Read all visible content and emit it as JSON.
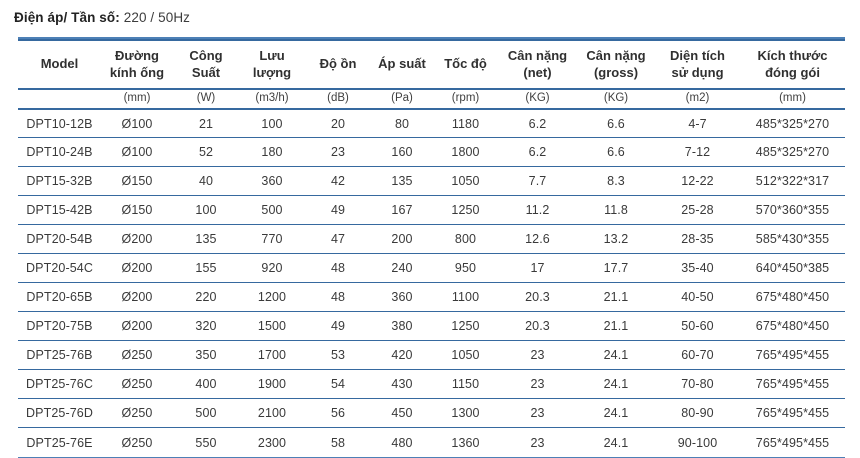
{
  "header": {
    "title_label": "Điện áp/ Tần số:",
    "title_value": "220 / 50Hz"
  },
  "colors": {
    "rule_dark": "#36699f",
    "rule_light": "#4d80b6",
    "text": "#3a3a3a"
  },
  "table": {
    "columns": [
      {
        "label": "Model",
        "unit": ""
      },
      {
        "label": "Đường\nkính ống",
        "unit": "(mm)"
      },
      {
        "label": "Công\nSuất",
        "unit": "(W)"
      },
      {
        "label": "Lưu\nlượng",
        "unit": "(m3/h)"
      },
      {
        "label": "Độ ồn",
        "unit": "(dB)"
      },
      {
        "label": "Áp suất",
        "unit": "(Pa)"
      },
      {
        "label": "Tốc độ",
        "unit": "(rpm)"
      },
      {
        "label": "Cân nặng\n(net)",
        "unit": "(KG)"
      },
      {
        "label": "Cân nặng\n(gross)",
        "unit": "(KG)"
      },
      {
        "label": "Diện tích\nsử dụng",
        "unit": "(m2)"
      },
      {
        "label": "Kích thước\nđóng gói",
        "unit": "(mm)"
      }
    ],
    "rows": [
      [
        "DPT10-12B",
        "Ø100",
        "21",
        "100",
        "20",
        "80",
        "1180",
        "6.2",
        "6.6",
        "4-7",
        "485*325*270"
      ],
      [
        "DPT10-24B",
        "Ø100",
        "52",
        "180",
        "23",
        "160",
        "1800",
        "6.2",
        "6.6",
        "7-12",
        "485*325*270"
      ],
      [
        "DPT15-32B",
        "Ø150",
        "40",
        "360",
        "42",
        "135",
        "1050",
        "7.7",
        "8.3",
        "12-22",
        "512*322*317"
      ],
      [
        "DPT15-42B",
        "Ø150",
        "100",
        "500",
        "49",
        "167",
        "1250",
        "11.2",
        "11.8",
        "25-28",
        "570*360*355"
      ],
      [
        "DPT20-54B",
        "Ø200",
        "135",
        "770",
        "47",
        "200",
        "800",
        "12.6",
        "13.2",
        "28-35",
        "585*430*355"
      ],
      [
        "DPT20-54C",
        "Ø200",
        "155",
        "920",
        "48",
        "240",
        "950",
        "17",
        "17.7",
        "35-40",
        "640*450*385"
      ],
      [
        "DPT20-65B",
        "Ø200",
        "220",
        "1200",
        "48",
        "360",
        "1100",
        "20.3",
        "21.1",
        "40-50",
        "675*480*450"
      ],
      [
        "DPT20-75B",
        "Ø200",
        "320",
        "1500",
        "49",
        "380",
        "1250",
        "20.3",
        "21.1",
        "50-60",
        "675*480*450"
      ],
      [
        "DPT25-76B",
        "Ø250",
        "350",
        "1700",
        "53",
        "420",
        "1050",
        "23",
        "24.1",
        "60-70",
        "765*495*455"
      ],
      [
        "DPT25-76C",
        "Ø250",
        "400",
        "1900",
        "54",
        "430",
        "1150",
        "23",
        "24.1",
        "70-80",
        "765*495*455"
      ],
      [
        "DPT25-76D",
        "Ø250",
        "500",
        "2100",
        "56",
        "450",
        "1300",
        "23",
        "24.1",
        "80-90",
        "765*495*455"
      ],
      [
        "DPT25-76E",
        "Ø250",
        "550",
        "2300",
        "58",
        "480",
        "1360",
        "23",
        "24.1",
        "90-100",
        "765*495*455"
      ]
    ]
  }
}
